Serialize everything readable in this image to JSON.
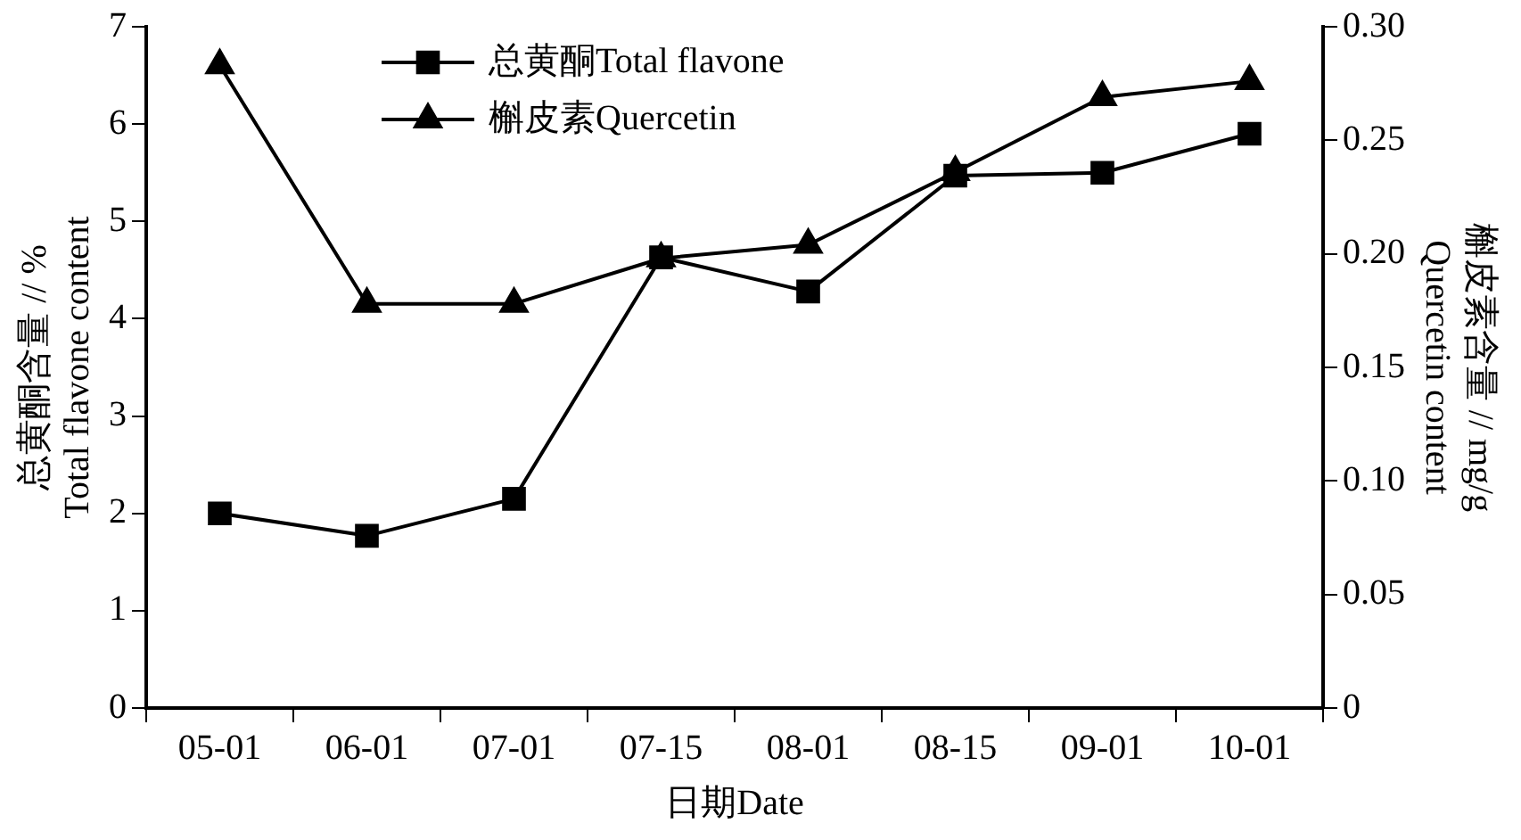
{
  "chart_data": {
    "type": "line",
    "categories": [
      "05-01",
      "06-01",
      "07-01",
      "07-15",
      "08-01",
      "08-15",
      "09-01",
      "10-01"
    ],
    "series": [
      {
        "name": "总黄酮Total flavone",
        "color": "#000000",
        "marker": "square",
        "values": [
          2.0,
          1.77,
          2.15,
          4.63,
          4.28,
          5.47,
          5.5,
          5.9
        ]
      },
      {
        "name": "槲皮素Quercetin",
        "color": "#000000",
        "marker": "triangle",
        "axis": "y2",
        "values": [
          0.283,
          0.178,
          0.178,
          0.198,
          0.204,
          0.236,
          0.269,
          0.276
        ]
      }
    ],
    "xlabel": "日期Date",
    "ylabel": "总黄酮含量 // %\nTotal flavone content",
    "y2label": "槲皮素含量 // mg/g\nQuercetin content",
    "ylim": [
      0,
      7
    ],
    "yticks": [
      0,
      1,
      2,
      3,
      4,
      5,
      6,
      7
    ],
    "y2lim": [
      0,
      0.3
    ],
    "y2ticks": [
      0,
      0.05,
      {
        "value": 0.1,
        "label": "0.10"
      },
      0.15,
      {
        "value": 0.2,
        "label": "0.20"
      },
      0.25,
      {
        "value": 0.3,
        "label": "0.30"
      }
    ],
    "grid": false,
    "legend": "top",
    "line_style": "solid"
  }
}
